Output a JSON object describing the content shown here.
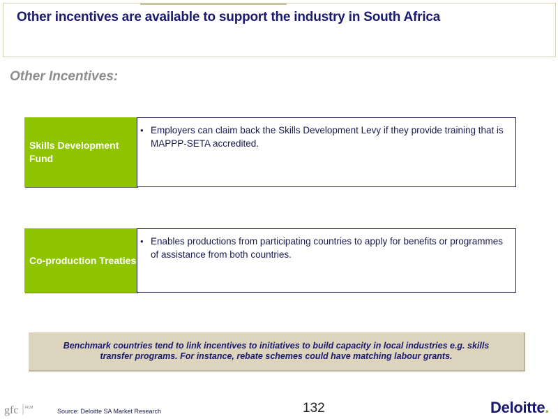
{
  "header": {
    "title": "Other incentives are available to support the industry in South Africa"
  },
  "section": {
    "subtitle": "Other Incentives:"
  },
  "incentives": [
    {
      "label": "Skills Development Fund",
      "bullets": [
        "Employers can claim back the Skills Development Levy if they provide training that is MAPPP-SETA accredited."
      ]
    },
    {
      "label": "Co-production Treaties",
      "bullets": [
        "Enables productions from participating countries to apply for benefits or programmes of assistance from both countries."
      ]
    }
  ],
  "callout": {
    "text": "Benchmark countries tend to link incentives to initiatives to build capacity in local industries e.g. skills transfer programs.  For instance, rebate schemes could have matching labour grants."
  },
  "footer": {
    "logo_text": "gfc",
    "logo_small": "FILM",
    "source": "Source: Deloitte SA Market Research",
    "page_number": "132",
    "brand": "Deloitte",
    "brand_dot": "."
  },
  "colors": {
    "accent_green": "#8fc400",
    "title_navy": "#1a1a6e",
    "callout_bg": "#dcd4bd"
  }
}
